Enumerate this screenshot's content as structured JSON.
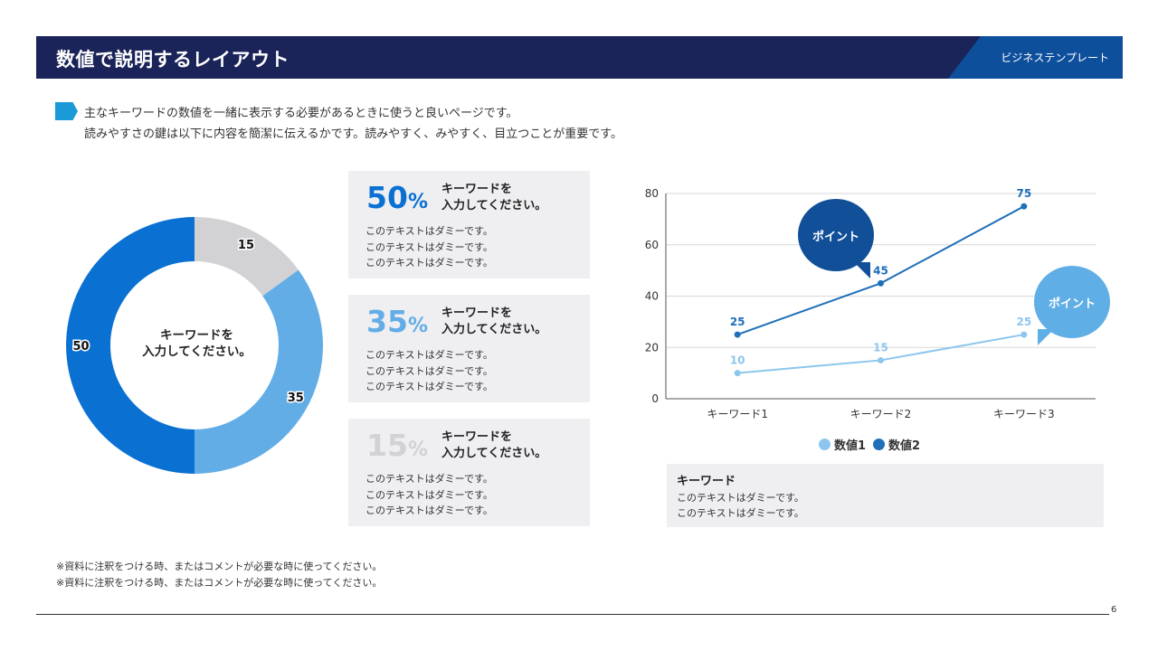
{
  "header": {
    "title": "数値で説明するレイアウト",
    "tag": "ビジネステンプレート"
  },
  "intro": [
    "主なキーワードの数値を一緒に表示する必要があるときに使うと良いページです。",
    "読みやすさの鍵は以下に内容を簡潔に伝えるかです。読みやすく、みやすく、目立つことが重要です。"
  ],
  "donut": {
    "center_label": [
      "キーワードを",
      "入力してください。"
    ]
  },
  "cards": [
    {
      "num": "50",
      "unit": "%",
      "color": "#0a71d3",
      "title": [
        "キーワードを",
        "入力してください。"
      ],
      "lines": [
        "このテキストはダミーです。",
        "このテキストはダミーです。",
        "このテキストはダミーです。"
      ]
    },
    {
      "num": "35",
      "unit": "%",
      "color": "#63ade6",
      "title": [
        "キーワードを",
        "入力してください。"
      ],
      "lines": [
        "このテキストはダミーです。",
        "このテキストはダミーです。",
        "このテキストはダミーです。"
      ]
    },
    {
      "num": "15",
      "unit": "%",
      "color": "#d2d2d4",
      "title": [
        "キーワードを",
        "入力してください。"
      ],
      "lines": [
        "このテキストはダミーです。",
        "このテキストはダミーです。",
        "このテキストはダミーです。"
      ]
    }
  ],
  "bubbles": [
    "ポイント",
    "ポイント"
  ],
  "keyword_box": {
    "title": "キーワード",
    "lines": [
      "このテキストはダミーです。",
      "このテキストはダミーです。"
    ]
  },
  "notes": [
    "※資料に注釈をつける時、またはコメントが必要な時に使ってください。",
    "※資料に注釈をつける時、またはコメントが必要な時に使ってください。"
  ],
  "page_number": "6",
  "chart_data": [
    {
      "type": "pie",
      "subtype": "donut",
      "categories": [
        "15",
        "35",
        "50"
      ],
      "values": [
        15,
        35,
        50
      ],
      "colors": [
        "#d2d2d4",
        "#63ade6",
        "#0a71d3"
      ],
      "data_labels": [
        "15",
        "35",
        "50"
      ]
    },
    {
      "type": "line",
      "categories": [
        "キーワード1",
        "キーワード2",
        "キーワード3"
      ],
      "series": [
        {
          "name": "数値1",
          "values": [
            10,
            15,
            25
          ],
          "color": "#8cc6ee"
        },
        {
          "name": "数値2",
          "values": [
            25,
            45,
            75
          ],
          "color": "#1f6fb9"
        }
      ],
      "ylim": [
        0,
        80
      ],
      "yticks": [
        0,
        20,
        40,
        60,
        80
      ],
      "grid": true,
      "legend": "bottom"
    }
  ]
}
